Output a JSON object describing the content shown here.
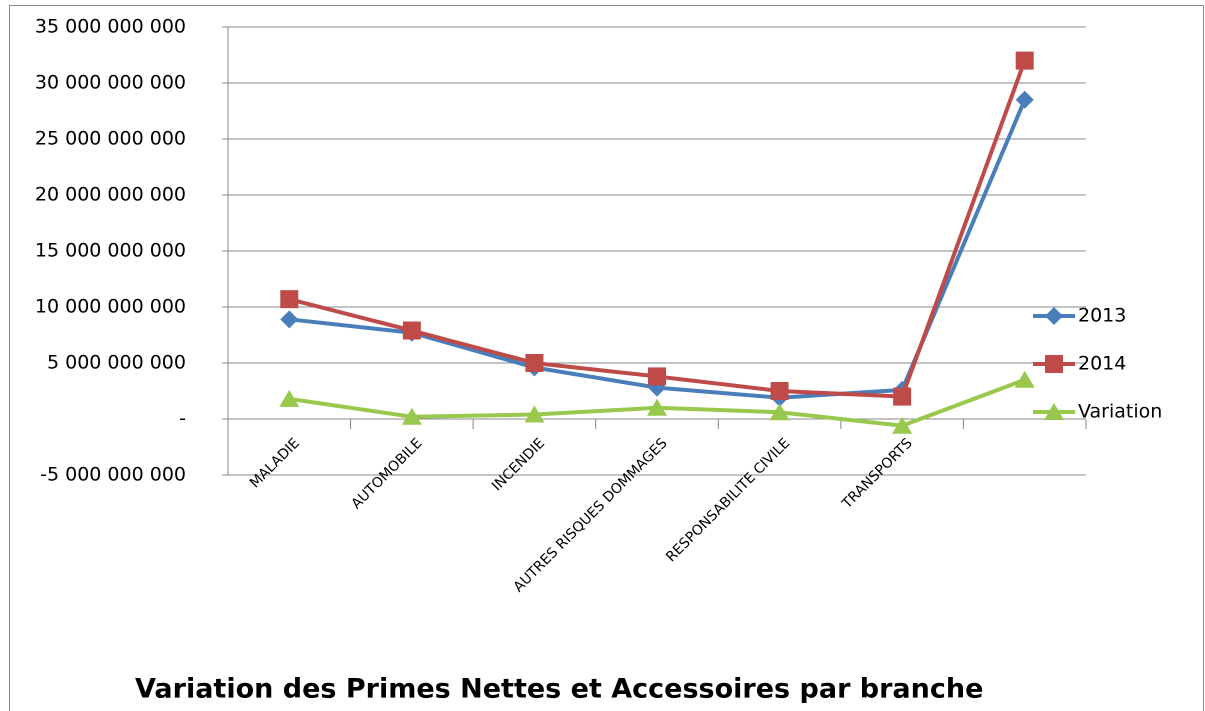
{
  "chart_data": {
    "type": "line",
    "title": "Variation des Primes Nettes et Accessoires par branche",
    "categories": [
      "MALADIE",
      "AUTOMOBILE",
      "INCENDIE",
      "AUTRES RISQUES DOMMAGES",
      "RESPONSABILITE CIVILE",
      "TRANSPORTS",
      null
    ],
    "series": [
      {
        "name": "2013",
        "color": "#4a7ebb",
        "marker": "diamond",
        "values": [
          8900000000,
          7700000000,
          4600000000,
          2800000000,
          1900000000,
          2600000000,
          28500000000
        ]
      },
      {
        "name": "2014",
        "color": "#be4b48",
        "marker": "square",
        "values": [
          10700000000,
          7900000000,
          5000000000,
          3800000000,
          2500000000,
          2000000000,
          32000000000
        ]
      },
      {
        "name": "Variation",
        "color": "#98c84c",
        "marker": "triangle",
        "values": [
          1800000000,
          200000000,
          400000000,
          1000000000,
          600000000,
          -600000000,
          3500000000
        ]
      }
    ],
    "ylim": [
      -5000000000,
      35000000000
    ],
    "yticks": [
      {
        "value": -5000000000,
        "label": "-5 000 000 000"
      },
      {
        "value": 0,
        "label": "-"
      },
      {
        "value": 5000000000,
        "label": "5 000 000 000"
      },
      {
        "value": 10000000000,
        "label": "10 000 000 000"
      },
      {
        "value": 15000000000,
        "label": "15 000 000 000"
      },
      {
        "value": 20000000000,
        "label": "20 000 000 000"
      },
      {
        "value": 25000000000,
        "label": "25 000 000 000"
      },
      {
        "value": 30000000000,
        "label": "30 000 000 000"
      },
      {
        "value": 35000000000,
        "label": "35 000 000 000"
      }
    ],
    "grid": true,
    "legend": "right"
  }
}
